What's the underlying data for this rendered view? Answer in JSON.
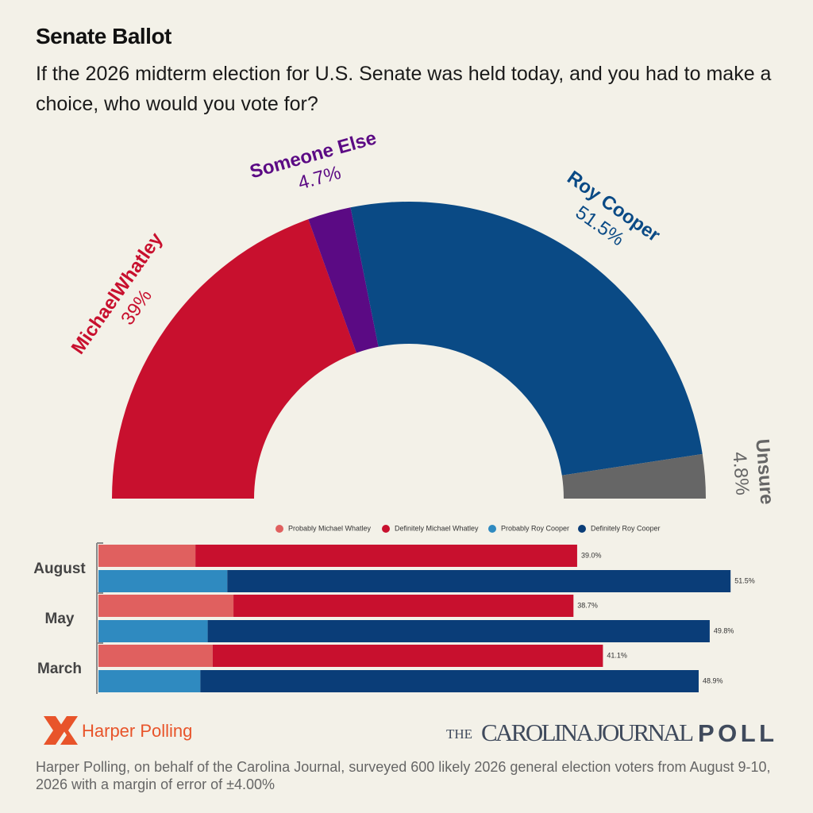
{
  "chart_data": [
    {
      "type": "pie",
      "title": "Senate Ballot",
      "subtitle": "If the 2026 midterm election for U.S. Senate was held today, and you had to make a choice, who would you vote for?",
      "categories": [
        "MichaelWhatley",
        "Someone Else",
        "Roy Cooper",
        "Unsure"
      ],
      "values": [
        39,
        4.7,
        51.5,
        4.8
      ],
      "value_labels": [
        "39%",
        "4.7%",
        "51.5%",
        "4.8%"
      ],
      "colors": [
        "#c8102e",
        "#5b0a84",
        "#0a4a85",
        "#666666"
      ]
    },
    {
      "type": "bar",
      "categories": [
        "August",
        "May",
        "March"
      ],
      "series": [
        {
          "name": "Probably Michael Whatley",
          "color": "#e0605f",
          "values": [
            7.9,
            11.0,
            9.3
          ]
        },
        {
          "name": "Definitely Michael Whatley",
          "color": "#c8102e",
          "values": [
            31.1,
            27.7,
            31.8
          ]
        },
        {
          "name": "Probably Roy Cooper",
          "color": "#2f8ac0",
          "values": [
            10.5,
            8.9,
            8.3
          ]
        },
        {
          "name": "Definitely Roy Cooper",
          "color": "#0a3d78",
          "values": [
            41.0,
            40.9,
            40.6
          ]
        }
      ],
      "totals": {
        "values": [
          [
            39.0,
            51.5
          ],
          [
            38.7,
            49.8
          ],
          [
            41.1,
            48.9
          ]
        ],
        "value_labels": [
          [
            "39.0%",
            "51.5%"
          ],
          [
            "38.7%",
            "49.8%"
          ],
          [
            "41.1%",
            "48.9%"
          ]
        ]
      }
    }
  ],
  "footer": {
    "harper": "Harper Polling",
    "cj_the": "THE",
    "cj_name": "CAROLINA JOURNAL",
    "cj_poll": "POLL",
    "note": "Harper Polling, on behalf of the Carolina Journal, surveyed 600 likely 2026 general election voters from August 9-10, 2026 with a margin of error of ±4.00%"
  }
}
